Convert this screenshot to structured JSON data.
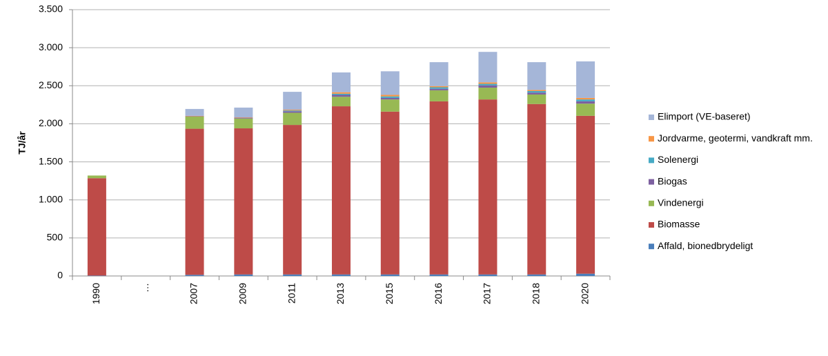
{
  "chart_data": {
    "type": "stacked_bar",
    "y_label": "TJ/år",
    "categories": [
      "1990",
      "…",
      "2007",
      "2009",
      "2011",
      "2013",
      "2015",
      "2016",
      "2017",
      "2018",
      "2020"
    ],
    "series": [
      {
        "name": "Affald, bionedbrydeligt",
        "color": "#4a7ebb",
        "values": [
          5,
          null,
          15,
          20,
          20,
          20,
          20,
          20,
          20,
          20,
          30
        ]
      },
      {
        "name": "Biomasse",
        "color": "#be4b48",
        "values": [
          1280,
          null,
          1920,
          1920,
          1965,
          2210,
          2140,
          2275,
          2300,
          2240,
          2075
        ]
      },
      {
        "name": "Vindenergi",
        "color": "#98b954",
        "values": [
          35,
          null,
          160,
          130,
          160,
          125,
          160,
          145,
          155,
          125,
          160
        ]
      },
      {
        "name": "Biogas",
        "color": "#7d60a0",
        "values": [
          0,
          null,
          5,
          10,
          20,
          25,
          20,
          20,
          30,
          25,
          30
        ]
      },
      {
        "name": "Solenergi",
        "color": "#46aac5",
        "values": [
          0,
          null,
          0,
          0,
          10,
          15,
          20,
          20,
          20,
          20,
          25
        ]
      },
      {
        "name": "Jordvarme, geotermi, vandkraft mm.",
        "color": "#f79646",
        "values": [
          0,
          null,
          5,
          5,
          10,
          20,
          20,
          15,
          20,
          15,
          20
        ]
      },
      {
        "name": "Elimport (VE-baseret)",
        "color": "#a5b6d8",
        "values": [
          0,
          null,
          90,
          128,
          235,
          260,
          310,
          315,
          400,
          365,
          480
        ]
      }
    ],
    "ylim": [
      0,
      3500
    ],
    "yticks": [
      0,
      500,
      {
        "value": 1000,
        "label": "1.000"
      },
      {
        "value": 1500,
        "label": "1.500"
      },
      {
        "value": 2000,
        "label": "2.000"
      },
      {
        "value": 2500,
        "label": "2.500"
      },
      {
        "value": 3000,
        "label": "3.000"
      },
      {
        "value": 3500,
        "label": "3.500"
      }
    ],
    "grid": true
  }
}
